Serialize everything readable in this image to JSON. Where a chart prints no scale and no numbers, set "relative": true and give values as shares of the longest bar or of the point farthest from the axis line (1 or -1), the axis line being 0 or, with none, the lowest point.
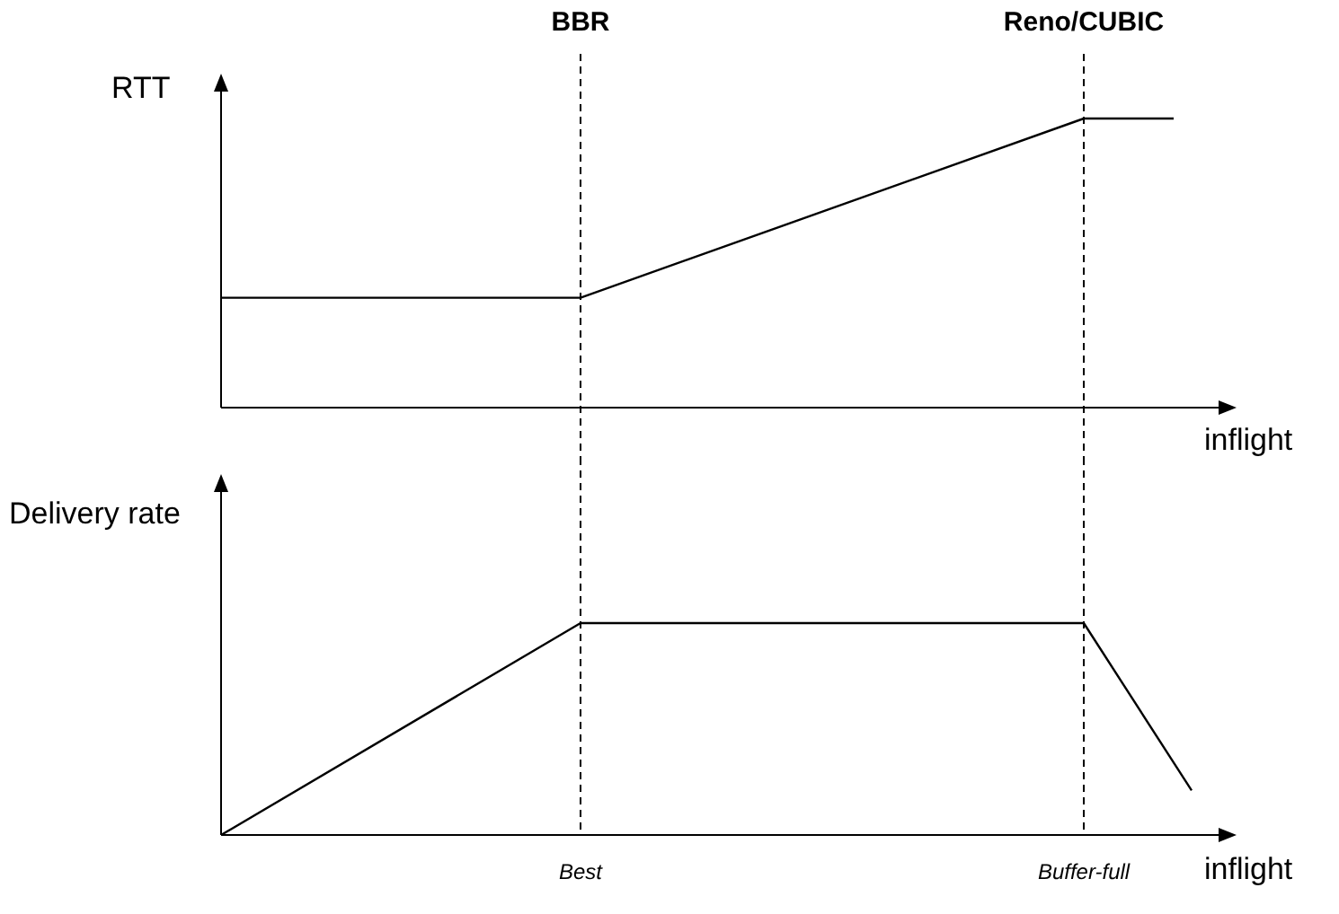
{
  "chart_data": [
    {
      "type": "line",
      "relative": true,
      "ylabel": "RTT",
      "xlabel": "inflight",
      "tick_labels": "x",
      "legend": false,
      "grid": false,
      "marker": "none",
      "line_style": "solid",
      "categories": [
        null,
        null,
        null,
        null,
        null,
        null,
        null,
        null,
        null,
        null,
        null,
        null,
        null,
        null,
        null,
        null,
        null,
        null,
        null,
        null,
        "BBR",
        null,
        null,
        null,
        null,
        null,
        null,
        null,
        null,
        null,
        null,
        null,
        null,
        null,
        null,
        null,
        null,
        null,
        null,
        null,
        null,
        null,
        null,
        null,
        null,
        null,
        null,
        null,
        "Reno/CUBIC",
        null,
        null,
        null,
        null,
        null,
        null,
        null,
        null
      ],
      "series": [
        {
          "color": "#000000",
          "values": [
            0.38,
            null,
            null,
            null,
            null,
            null,
            null,
            null,
            null,
            null,
            null,
            null,
            null,
            null,
            null,
            null,
            null,
            null,
            null,
            null,
            0.38,
            null,
            null,
            null,
            null,
            null,
            null,
            null,
            null,
            null,
            null,
            null,
            null,
            null,
            null,
            null,
            null,
            null,
            null,
            null,
            null,
            null,
            null,
            null,
            null,
            null,
            null,
            null,
            1,
            null,
            null,
            null,
            null,
            1,
            null,
            null,
            null
          ]
        }
      ],
      "ref_lines": [
        {
          "axis": "x",
          "value": "BBR",
          "line_style": "dashed",
          "color": "#000000"
        },
        {
          "axis": "x",
          "value": "Reno/CUBIC",
          "line_style": "dashed",
          "color": "#000000"
        }
      ]
    },
    {
      "type": "line",
      "relative": true,
      "ylabel": "Delivery rate",
      "xlabel": "inflight",
      "tick_labels": "x",
      "legend": false,
      "grid": false,
      "marker": "none",
      "line_style": "solid",
      "categories": [
        null,
        null,
        null,
        null,
        null,
        null,
        null,
        null,
        null,
        null,
        null,
        null,
        null,
        null,
        null,
        null,
        null,
        null,
        null,
        null,
        "Best",
        null,
        null,
        null,
        null,
        null,
        null,
        null,
        null,
        null,
        null,
        null,
        null,
        null,
        null,
        null,
        null,
        null,
        null,
        null,
        null,
        null,
        null,
        null,
        null,
        null,
        null,
        null,
        "Buffer-full",
        null,
        null,
        null,
        null,
        null,
        null,
        null,
        null
      ],
      "series": [
        {
          "color": "#000000",
          "values": [
            0,
            null,
            null,
            null,
            null,
            null,
            null,
            null,
            null,
            null,
            null,
            null,
            null,
            null,
            null,
            null,
            null,
            null,
            null,
            null,
            1,
            null,
            null,
            null,
            null,
            null,
            null,
            null,
            null,
            null,
            null,
            null,
            null,
            null,
            null,
            null,
            null,
            null,
            null,
            null,
            null,
            null,
            null,
            null,
            null,
            null,
            null,
            null,
            1,
            null,
            null,
            null,
            null,
            null,
            0.21,
            null,
            null
          ]
        }
      ],
      "ref_lines": [
        {
          "axis": "x",
          "value": "Best",
          "line_style": "dashed",
          "color": "#000000"
        },
        {
          "axis": "x",
          "value": "Buffer-full",
          "line_style": "dashed",
          "color": "#000000"
        }
      ]
    }
  ]
}
